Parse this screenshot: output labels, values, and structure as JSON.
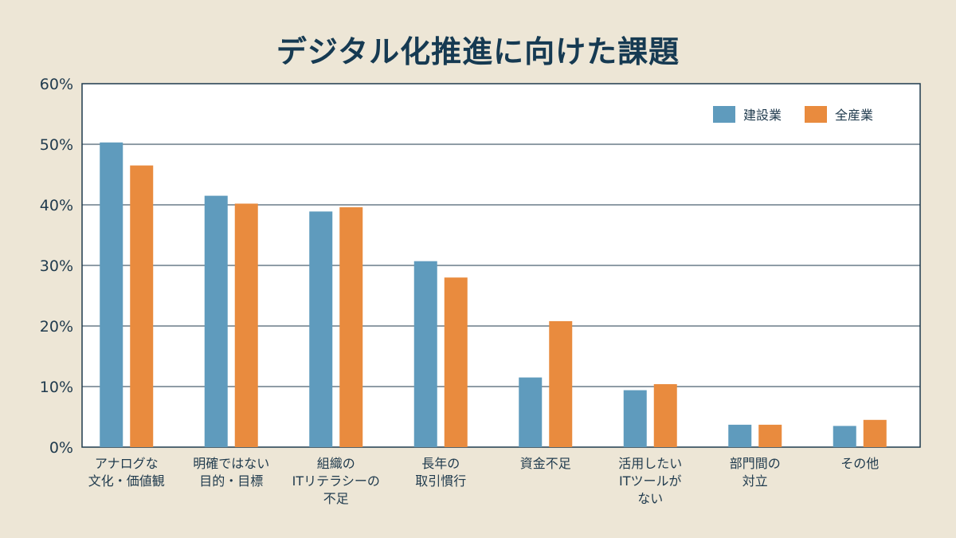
{
  "chart_data": {
    "type": "bar",
    "title": "デジタル化推進に向けた課題",
    "categories": [
      [
        "アナログな",
        "文化・価値観"
      ],
      [
        "明確ではない",
        "目的・目標"
      ],
      [
        "組織の",
        "ITリテラシーの",
        "不足"
      ],
      [
        "長年の",
        "取引慣行"
      ],
      [
        "資金不足"
      ],
      [
        "活用したい",
        "ITツールが",
        "ない"
      ],
      [
        "部門間の",
        "対立"
      ],
      [
        "その他"
      ]
    ],
    "series": [
      {
        "name": "建設業",
        "color": "#5f9bbd",
        "values": [
          50.3,
          41.5,
          38.9,
          30.7,
          11.5,
          9.4,
          3.7,
          3.5
        ]
      },
      {
        "name": "全産業",
        "color": "#e98b3e",
        "values": [
          46.5,
          40.2,
          39.6,
          28.0,
          20.8,
          10.4,
          3.7,
          4.5
        ]
      }
    ],
    "ylim": [
      0,
      60
    ],
    "yticks": [
      "0%",
      "10%",
      "20%",
      "30%",
      "40%",
      "50%",
      "60%"
    ],
    "ytick_values": [
      0,
      10,
      20,
      30,
      40,
      50,
      60
    ],
    "grid": true,
    "legend_position": "top-right",
    "xlabel": "",
    "ylabel": ""
  }
}
